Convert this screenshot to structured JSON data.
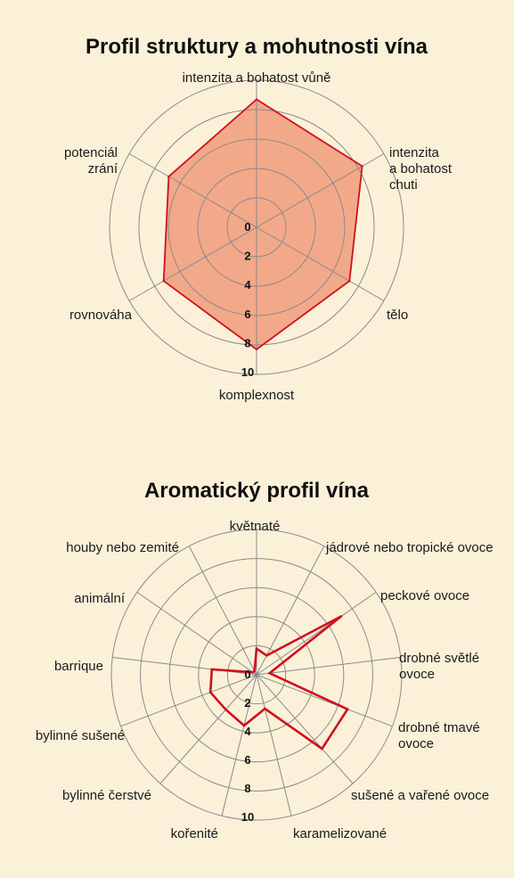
{
  "colors": {
    "background": "#fbf1d9",
    "grid": "#8a8a8a",
    "line": "#d0101f",
    "fill": "#f2a98a"
  },
  "chart_data": [
    {
      "type": "radar",
      "title": "Profil struktury a mohutnosti vína",
      "axes": [
        [
          "intenzita a bohatost vůně"
        ],
        [
          "intenzita",
          "a bohatost",
          "chuti"
        ],
        [
          "tělo"
        ],
        [
          "komplexnost"
        ],
        [
          "rovnováha"
        ],
        [
          "potenciál",
          "zrání"
        ]
      ],
      "ticks": [
        "0",
        "2",
        "4",
        "6",
        "8",
        "10"
      ],
      "range": [
        0,
        10
      ],
      "grid_rings": 5,
      "filled": true,
      "values": [
        8.7,
        8.3,
        7.3,
        8.3,
        7.3,
        6.9
      ]
    },
    {
      "type": "radar",
      "title": "Aromatický profil vína",
      "axes": [
        [
          "květnaté"
        ],
        [
          "jádrové nebo tropické ovoce"
        ],
        [
          "peckové ovoce"
        ],
        [
          "drobné světlé",
          "ovoce"
        ],
        [
          "drobné tmavé",
          "ovoce"
        ],
        [
          "sušené a vařené ovoce"
        ],
        [
          "karamelizované"
        ],
        [
          "kořenité"
        ],
        [
          "bylinné čerstvé"
        ],
        [
          "bylinné sušené"
        ],
        [
          "barrique"
        ],
        [
          "animální"
        ],
        [
          "houby nebo zemité"
        ]
      ],
      "ticks": [
        "0",
        "2",
        "4",
        "6",
        "8",
        "10"
      ],
      "range": [
        0,
        10
      ],
      "grid_rings": 5,
      "filled": false,
      "values": [
        1.8,
        1.5,
        7.1,
        0.9,
        6.7,
        6.8,
        2.4,
        3.6,
        3.2,
        3.4,
        3.1,
        0.3,
        0.3
      ]
    }
  ]
}
